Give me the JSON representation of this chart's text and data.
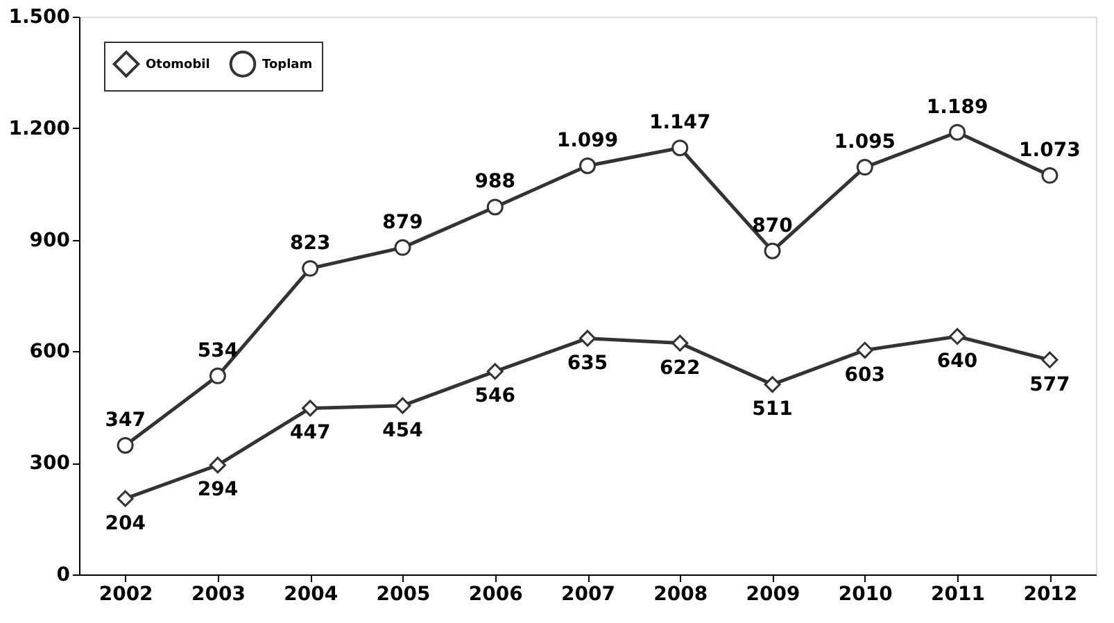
{
  "chart_data": {
    "type": "line",
    "categories": [
      "2002",
      "2003",
      "2004",
      "2005",
      "2006",
      "2007",
      "2008",
      "2009",
      "2010",
      "2011",
      "2012"
    ],
    "series": [
      {
        "name": "Otomobil",
        "color": "#333333",
        "marker": "diamond",
        "values": [
          204,
          294,
          447,
          454,
          546,
          635,
          622,
          511,
          603,
          640,
          577
        ],
        "value_labels": [
          "204",
          "294",
          "447",
          "454",
          "546",
          "635",
          "622",
          "511",
          "603",
          "640",
          "577"
        ]
      },
      {
        "name": "Toplam",
        "color": "#333333",
        "marker": "circle",
        "values": [
          347,
          534,
          823,
          879,
          988,
          1099,
          1147,
          870,
          1095,
          1189,
          1073
        ],
        "value_labels": [
          "347",
          "534",
          "823",
          "879",
          "988",
          "1.099",
          "1.147",
          "870",
          "1.095",
          "1.189",
          "1.073"
        ]
      }
    ],
    "ylim": [
      0,
      1500
    ],
    "yticks": [
      0,
      300,
      600,
      900,
      {
        "value": 1200,
        "label": "1.200"
      },
      {
        "value": 1500,
        "label": "1.500"
      }
    ],
    "grid": false,
    "legend": "top left",
    "line_style": "solid"
  }
}
